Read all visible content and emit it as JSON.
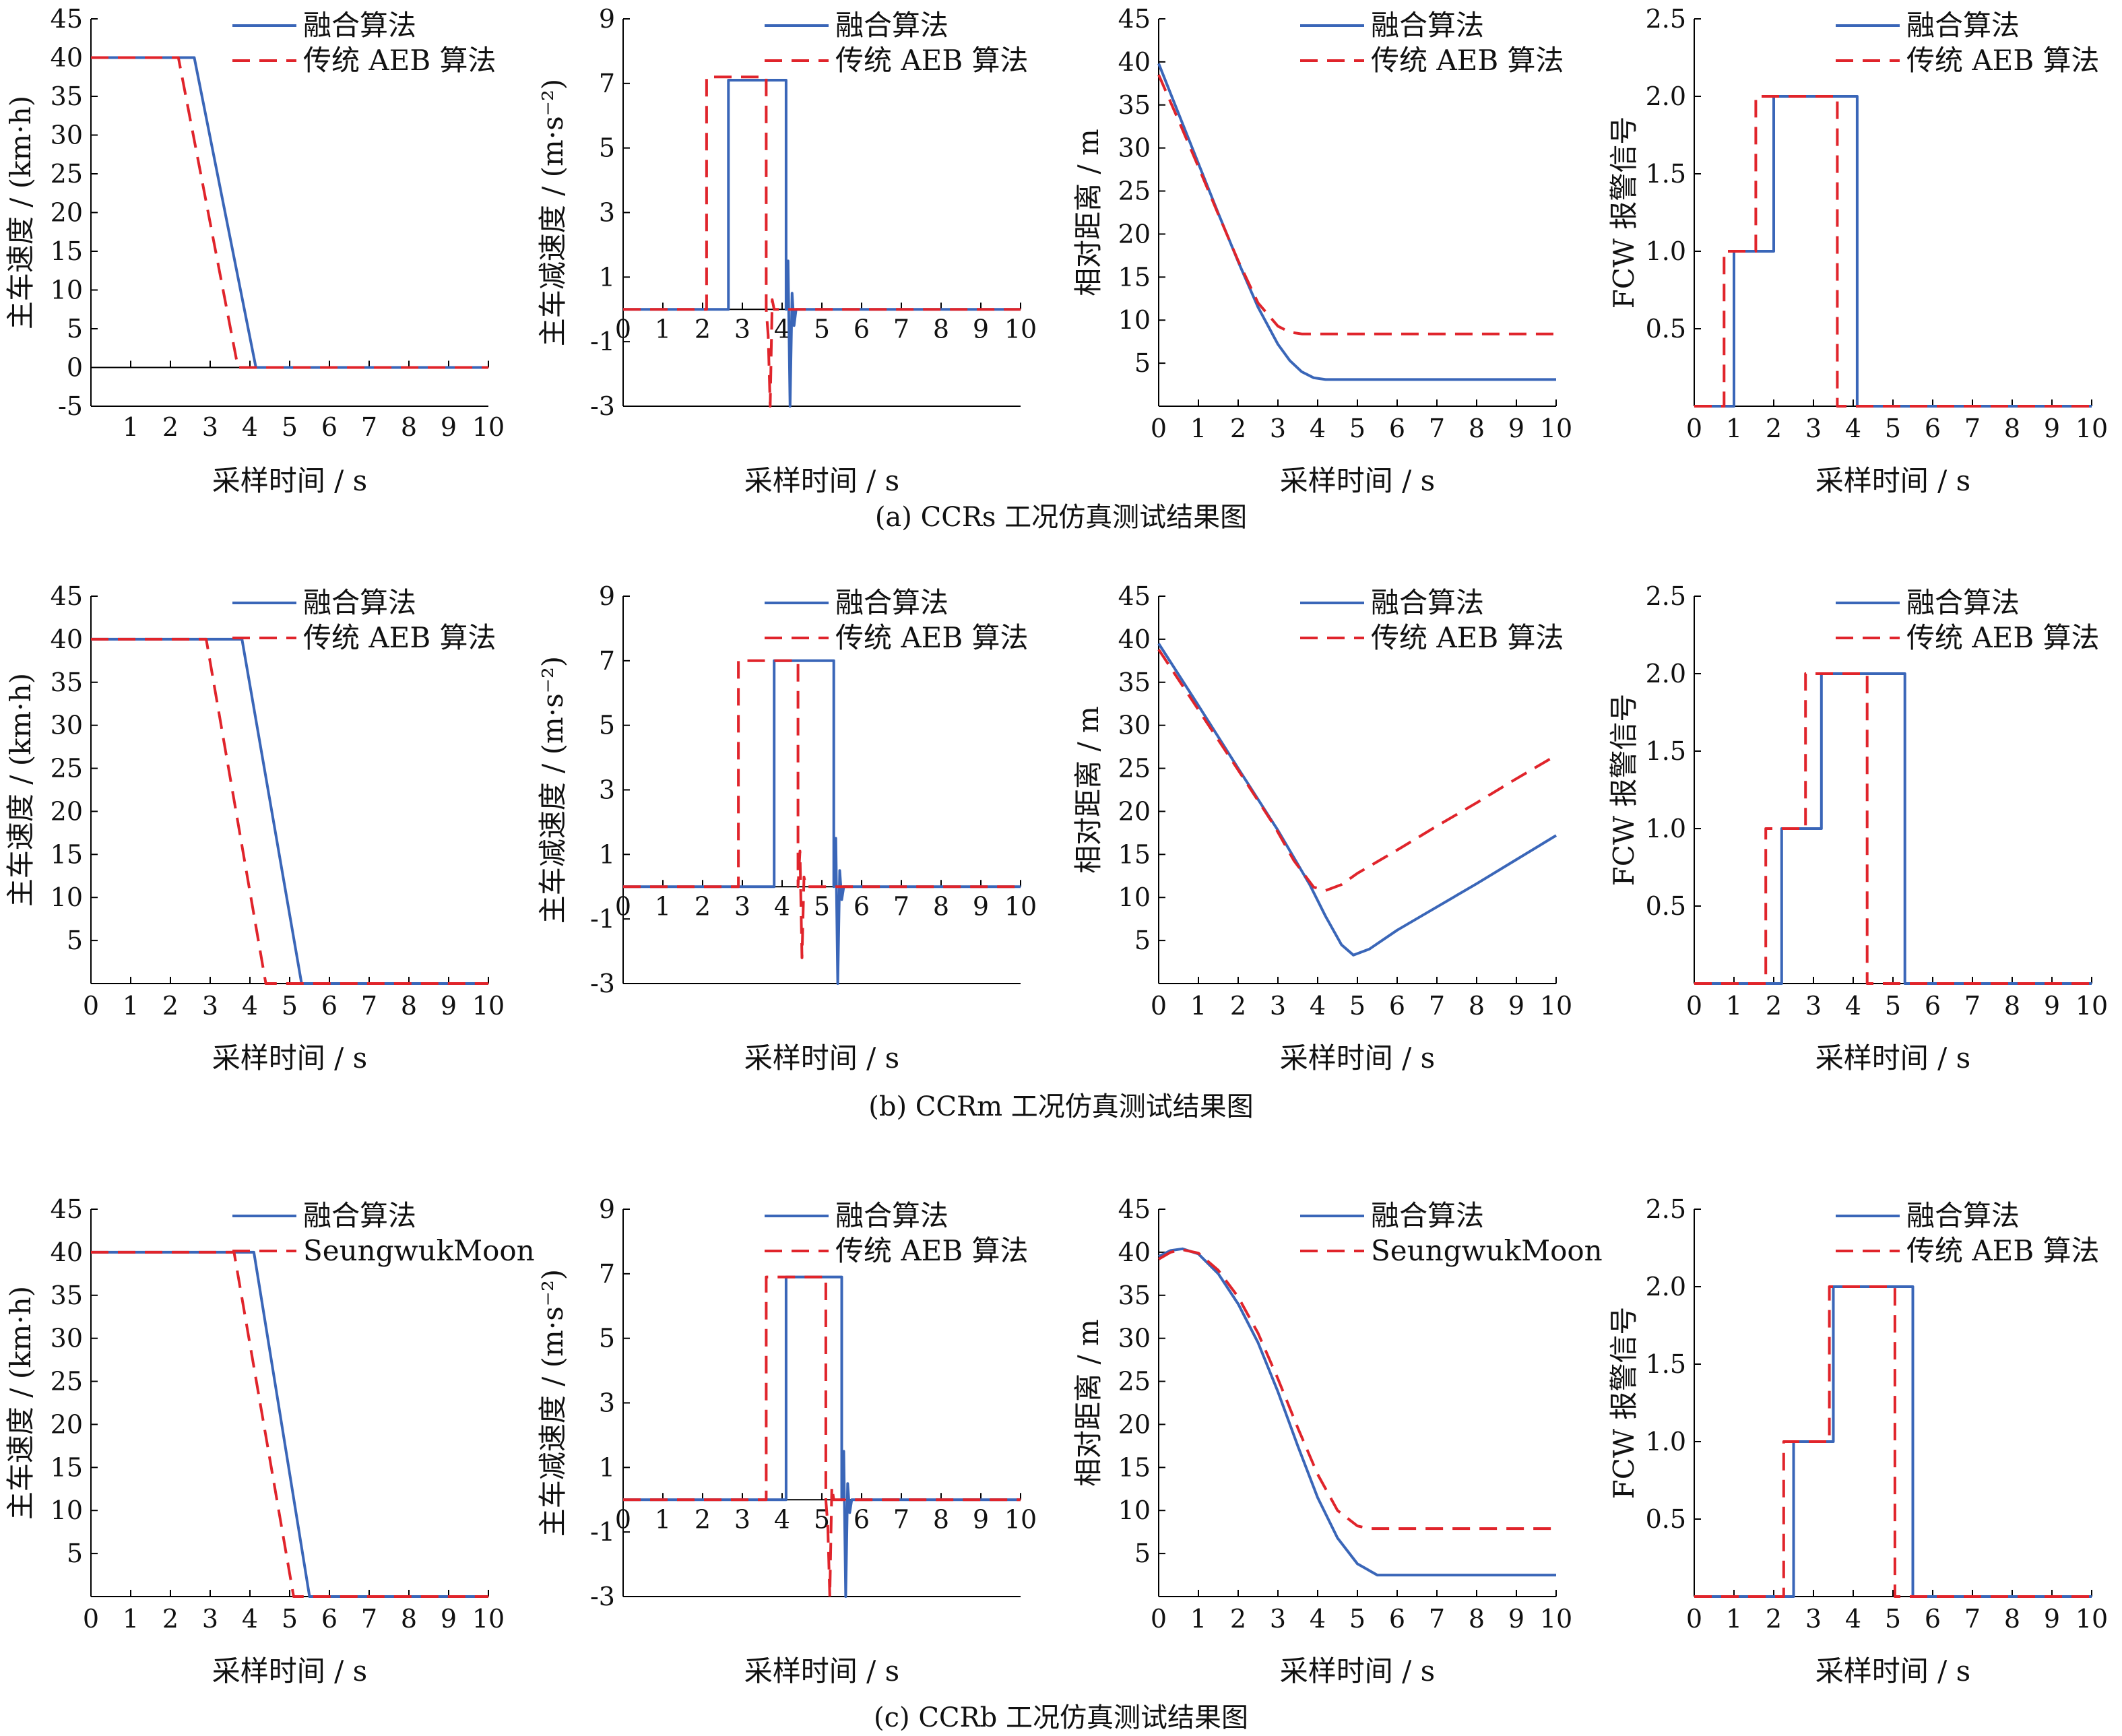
{
  "captions": [
    "(a) CCRs 工况仿真测试结果图",
    "(b) CCRm 工况仿真测试结果图",
    "(c) CCRb 工况仿真测试结果图"
  ],
  "colors": {
    "fusion": "#3a66b8",
    "aeb": "#e0242b",
    "axis": "#000000"
  },
  "chart_data": [
    {
      "id": "a-speed",
      "type": "line",
      "row": 0,
      "col": 0,
      "xlabel": "采样时间 / s",
      "ylabel": "主车速度 / (km·h)",
      "xlim": [
        0,
        10
      ],
      "ylim": [
        -5,
        45
      ],
      "xticks": [
        1,
        2,
        3,
        4,
        5,
        6,
        7,
        8,
        9,
        10
      ],
      "yticks": [
        -5,
        0,
        5,
        10,
        15,
        20,
        25,
        30,
        35,
        40,
        45
      ],
      "xzero_label": "",
      "zero_axis": true,
      "legend": [
        "融合算法",
        "传统 AEB 算法"
      ],
      "series": [
        {
          "name": "融合算法",
          "style": "solid",
          "x": [
            0,
            2.6,
            4.15,
            10
          ],
          "y": [
            40,
            40,
            0,
            0
          ]
        },
        {
          "name": "传统 AEB 算法",
          "style": "dashed",
          "x": [
            0,
            2.2,
            3.7,
            10
          ],
          "y": [
            40,
            40,
            0,
            0
          ]
        }
      ]
    },
    {
      "id": "a-decel",
      "type": "line",
      "row": 0,
      "col": 1,
      "xlabel": "采样时间 / s",
      "ylabel": "主车减速度 / (m·s⁻²)",
      "xlim": [
        0,
        10
      ],
      "ylim": [
        -3,
        9
      ],
      "xticks": [
        1,
        2,
        3,
        4,
        5,
        6,
        7,
        8,
        9,
        10
      ],
      "yticks": [
        -3,
        -1,
        1,
        3,
        5,
        7,
        9
      ],
      "xzero_label": "0",
      "zero_axis": true,
      "legend": [
        "融合算法",
        "传统 AEB 算法"
      ],
      "series": [
        {
          "name": "融合算法",
          "style": "solid",
          "x": [
            0,
            2.65,
            2.65,
            4.1,
            4.1,
            4.15,
            4.2,
            4.25,
            4.3,
            4.35,
            10
          ],
          "y": [
            0,
            0,
            7.1,
            7.1,
            0,
            1.5,
            -3,
            0.5,
            -0.5,
            0,
            0
          ]
        },
        {
          "name": "传统 AEB 算法",
          "style": "dashed",
          "x": [
            0,
            2.1,
            2.1,
            3.6,
            3.6,
            3.65,
            3.7,
            3.75,
            3.8,
            10
          ],
          "y": [
            0,
            0,
            7.2,
            7.2,
            0,
            -0.8,
            -3,
            0.3,
            0,
            0
          ]
        }
      ]
    },
    {
      "id": "a-dist",
      "type": "line",
      "row": 0,
      "col": 2,
      "xlabel": "采样时间 / s",
      "ylabel": "相对距离 / m",
      "xlim": [
        0,
        10
      ],
      "ylim": [
        0,
        45
      ],
      "xticks": [
        0,
        1,
        2,
        3,
        4,
        5,
        6,
        7,
        8,
        9,
        10
      ],
      "yticks": [
        5,
        10,
        15,
        20,
        25,
        30,
        35,
        40,
        45
      ],
      "xzero_label": "",
      "zero_axis": false,
      "legend": [
        "融合算法",
        "传统 AEB 算法"
      ],
      "series": [
        {
          "name": "融合算法",
          "style": "solid",
          "x": [
            0,
            0.5,
            1,
            1.5,
            2,
            2.5,
            3,
            3.3,
            3.6,
            3.9,
            4.2,
            5,
            10
          ],
          "y": [
            39.8,
            34,
            28.2,
            22.4,
            16.8,
            11.5,
            7.2,
            5.3,
            4.0,
            3.3,
            3.1,
            3.1,
            3.1
          ]
        },
        {
          "name": "传统 AEB 算法",
          "style": "dashed",
          "x": [
            0,
            0.5,
            1,
            1.5,
            2,
            2.5,
            3,
            3.3,
            3.6,
            4,
            10
          ],
          "y": [
            38.5,
            33.2,
            27.8,
            22.3,
            16.9,
            12.0,
            9.3,
            8.6,
            8.4,
            8.4,
            8.4
          ]
        }
      ]
    },
    {
      "id": "a-fcw",
      "type": "line",
      "row": 0,
      "col": 3,
      "xlabel": "采样时间 / s",
      "ylabel": "FCW 报警信号",
      "xlim": [
        0,
        10
      ],
      "ylim": [
        0,
        2.5
      ],
      "xticks": [
        0,
        1,
        2,
        3,
        4,
        5,
        6,
        7,
        8,
        9,
        10
      ],
      "yticks": [
        0.5,
        1.0,
        1.5,
        2.0,
        2.5
      ],
      "xzero_label": "",
      "zero_axis": false,
      "legend": [
        "融合算法",
        "传统 AEB 算法"
      ],
      "series": [
        {
          "name": "融合算法",
          "style": "solid",
          "x": [
            0,
            1,
            1,
            2,
            2,
            4.1,
            4.1,
            10
          ],
          "y": [
            0,
            0,
            1,
            1,
            2,
            2,
            0,
            0
          ]
        },
        {
          "name": "传统 AEB 算法",
          "style": "dashed",
          "x": [
            0,
            0.75,
            0.75,
            1.55,
            1.55,
            3.6,
            3.6,
            10
          ],
          "y": [
            0,
            0,
            1,
            1,
            2,
            2,
            0,
            0
          ]
        }
      ]
    },
    {
      "id": "b-speed",
      "type": "line",
      "row": 1,
      "col": 0,
      "xlabel": "采样时间 / s",
      "ylabel": "主车速度 / (km·h)",
      "xlim": [
        0,
        10
      ],
      "ylim": [
        0,
        45
      ],
      "xticks": [
        0,
        1,
        2,
        3,
        4,
        5,
        6,
        7,
        8,
        9,
        10
      ],
      "yticks": [
        5,
        10,
        15,
        20,
        25,
        30,
        35,
        40,
        45
      ],
      "xzero_label": "",
      "zero_axis": false,
      "legend": [
        "融合算法",
        "传统 AEB 算法"
      ],
      "series": [
        {
          "name": "融合算法",
          "style": "solid",
          "x": [
            0,
            3.8,
            5.3,
            10
          ],
          "y": [
            40,
            40,
            0,
            0
          ]
        },
        {
          "name": "传统 AEB 算法",
          "style": "dashed",
          "x": [
            0,
            2.9,
            4.4,
            10
          ],
          "y": [
            40,
            40,
            0,
            0
          ]
        }
      ]
    },
    {
      "id": "b-decel",
      "type": "line",
      "row": 1,
      "col": 1,
      "xlabel": "采样时间 / s",
      "ylabel": "主车减速度 / (m·s⁻²)",
      "xlim": [
        0,
        10
      ],
      "ylim": [
        -3,
        9
      ],
      "xticks": [
        1,
        2,
        3,
        4,
        5,
        6,
        7,
        8,
        9,
        10
      ],
      "yticks": [
        -3,
        -1,
        1,
        3,
        5,
        7,
        9
      ],
      "xzero_label": "0",
      "zero_axis": true,
      "legend": [
        "融合算法",
        "传统 AEB 算法"
      ],
      "series": [
        {
          "name": "融合算法",
          "style": "solid",
          "x": [
            0,
            3.8,
            3.8,
            5.3,
            5.3,
            5.35,
            5.4,
            5.45,
            5.5,
            5.55,
            10
          ],
          "y": [
            0,
            0,
            7,
            7,
            0,
            1.5,
            -3,
            0.5,
            -0.4,
            0,
            0
          ]
        },
        {
          "name": "传统 AEB 算法",
          "style": "dashed",
          "x": [
            0,
            2.9,
            2.9,
            4.4,
            4.4,
            4.45,
            4.5,
            4.55,
            4.6,
            10
          ],
          "y": [
            0,
            0,
            7,
            7,
            0,
            1.1,
            -2.2,
            0.3,
            0,
            0
          ]
        }
      ]
    },
    {
      "id": "b-dist",
      "type": "line",
      "row": 1,
      "col": 2,
      "xlabel": "采样时间 / s",
      "ylabel": "相对距离 / m",
      "xlim": [
        0,
        10
      ],
      "ylim": [
        0,
        45
      ],
      "xticks": [
        0,
        1,
        2,
        3,
        4,
        5,
        6,
        7,
        8,
        9,
        10
      ],
      "yticks": [
        5,
        10,
        15,
        20,
        25,
        30,
        35,
        40,
        45
      ],
      "xzero_label": "",
      "zero_axis": false,
      "legend": [
        "融合算法",
        "传统 AEB 算法"
      ],
      "series": [
        {
          "name": "融合算法",
          "style": "solid",
          "x": [
            0,
            1,
            2,
            3,
            3.8,
            4.2,
            4.6,
            4.9,
            5.3,
            6,
            7,
            8,
            9,
            10
          ],
          "y": [
            39.5,
            32.3,
            25,
            17.8,
            11.5,
            7.8,
            4.5,
            3.3,
            4.0,
            6.2,
            8.9,
            11.6,
            14.4,
            17.2
          ]
        },
        {
          "name": "传统 AEB 算法",
          "style": "dashed",
          "x": [
            0,
            1,
            2,
            2.9,
            3.4,
            3.9,
            4.2,
            4.6,
            5,
            6,
            7,
            8,
            9,
            10
          ],
          "y": [
            38.8,
            31.8,
            24.8,
            18.4,
            14.3,
            11.2,
            10.8,
            11.5,
            12.8,
            15.5,
            18.3,
            21.0,
            23.8,
            26.5
          ]
        }
      ]
    },
    {
      "id": "b-fcw",
      "type": "line",
      "row": 1,
      "col": 3,
      "xlabel": "采样时间 / s",
      "ylabel": "FCW 报警信号",
      "xlim": [
        0,
        10
      ],
      "ylim": [
        0,
        2.5
      ],
      "xticks": [
        0,
        1,
        2,
        3,
        4,
        5,
        6,
        7,
        8,
        9,
        10
      ],
      "yticks": [
        0.5,
        1.0,
        1.5,
        2.0,
        2.5
      ],
      "xzero_label": "",
      "zero_axis": false,
      "legend": [
        "融合算法",
        "传统 AEB 算法"
      ],
      "series": [
        {
          "name": "融合算法",
          "style": "solid",
          "x": [
            0,
            2.2,
            2.2,
            3.2,
            3.2,
            5.3,
            5.3,
            10
          ],
          "y": [
            0,
            0,
            1,
            1,
            2,
            2,
            0,
            0
          ]
        },
        {
          "name": "传统 AEB 算法",
          "style": "dashed",
          "x": [
            0,
            1.8,
            1.8,
            2.8,
            2.8,
            4.35,
            4.35,
            10
          ],
          "y": [
            0,
            0,
            1,
            1,
            2,
            2,
            0,
            0
          ]
        }
      ]
    },
    {
      "id": "c-speed",
      "type": "line",
      "row": 2,
      "col": 0,
      "xlabel": "采样时间 / s",
      "ylabel": "主车速度 / (km·h)",
      "xlim": [
        0,
        10
      ],
      "ylim": [
        0,
        45
      ],
      "xticks": [
        0,
        1,
        2,
        3,
        4,
        5,
        6,
        7,
        8,
        9,
        10
      ],
      "yticks": [
        5,
        10,
        15,
        20,
        25,
        30,
        35,
        40,
        45
      ],
      "xzero_label": "",
      "zero_axis": false,
      "legend": [
        "融合算法",
        "SeungwukMoon"
      ],
      "series": [
        {
          "name": "融合算法",
          "style": "solid",
          "x": [
            0,
            4.1,
            5.5,
            10
          ],
          "y": [
            40,
            40,
            0,
            0
          ]
        },
        {
          "name": "SeungwukMoon",
          "style": "dashed",
          "x": [
            0,
            3.6,
            5.1,
            10
          ],
          "y": [
            40,
            40,
            0,
            0
          ]
        }
      ]
    },
    {
      "id": "c-decel",
      "type": "line",
      "row": 2,
      "col": 1,
      "xlabel": "采样时间 / s",
      "ylabel": "主车减速度 / (m·s⁻²)",
      "xlim": [
        0,
        10
      ],
      "ylim": [
        -3,
        9
      ],
      "xticks": [
        1,
        2,
        3,
        4,
        5,
        6,
        7,
        8,
        9,
        10
      ],
      "yticks": [
        -3,
        -1,
        1,
        3,
        5,
        7,
        9
      ],
      "xzero_label": "0",
      "zero_axis": true,
      "legend": [
        "融合算法",
        "传统 AEB 算法"
      ],
      "series": [
        {
          "name": "融合算法",
          "style": "solid",
          "x": [
            0,
            4.1,
            4.1,
            5.5,
            5.5,
            5.55,
            5.6,
            5.65,
            5.7,
            5.75,
            10
          ],
          "y": [
            0,
            0,
            6.9,
            6.9,
            0,
            1.5,
            -3,
            0.5,
            -0.4,
            0,
            0
          ]
        },
        {
          "name": "传统 AEB 算法",
          "style": "dashed",
          "x": [
            0,
            3.6,
            3.6,
            5.1,
            5.1,
            5.15,
            5.2,
            5.25,
            5.3,
            10
          ],
          "y": [
            0,
            0,
            6.9,
            6.9,
            0,
            -0.8,
            -3,
            0.4,
            0,
            0
          ]
        }
      ]
    },
    {
      "id": "c-dist",
      "type": "line",
      "row": 2,
      "col": 2,
      "xlabel": "采样时间 / s",
      "ylabel": "相对距离 / m",
      "xlim": [
        0,
        10
      ],
      "ylim": [
        0,
        45
      ],
      "xticks": [
        0,
        1,
        2,
        3,
        4,
        5,
        6,
        7,
        8,
        9,
        10
      ],
      "yticks": [
        5,
        10,
        15,
        20,
        25,
        30,
        35,
        40,
        45
      ],
      "xzero_label": "",
      "zero_axis": false,
      "legend": [
        "融合算法",
        "SeungwukMoon"
      ],
      "series": [
        {
          "name": "融合算法",
          "style": "solid",
          "x": [
            0,
            0.3,
            0.6,
            1,
            1.5,
            2,
            2.5,
            3,
            3.5,
            4,
            4.5,
            5,
            5.5,
            6,
            10
          ],
          "y": [
            39.5,
            40.2,
            40.4,
            39.8,
            37.5,
            34.0,
            29.5,
            23.8,
            17.5,
            11.5,
            6.8,
            3.8,
            2.5,
            2.5,
            2.5
          ]
        },
        {
          "name": "SeungwukMoon",
          "style": "dashed",
          "x": [
            0,
            0.3,
            0.6,
            1,
            1.5,
            2,
            2.5,
            3,
            3.5,
            4,
            4.5,
            5,
            5.3,
            10
          ],
          "y": [
            39.2,
            40.0,
            40.3,
            39.9,
            37.9,
            34.8,
            30.6,
            25.3,
            19.6,
            14.2,
            10.0,
            8.2,
            7.9,
            7.9
          ]
        }
      ]
    },
    {
      "id": "c-fcw",
      "type": "line",
      "row": 2,
      "col": 3,
      "xlabel": "采样时间 / s",
      "ylabel": "FCW 报警信号",
      "xlim": [
        0,
        10
      ],
      "ylim": [
        0,
        2.5
      ],
      "xticks": [
        0,
        1,
        2,
        3,
        4,
        5,
        6,
        7,
        8,
        9,
        10
      ],
      "yticks": [
        0.5,
        1.0,
        1.5,
        2.0,
        2.5
      ],
      "xzero_label": "",
      "zero_axis": false,
      "legend": [
        "融合算法",
        "传统 AEB 算法"
      ],
      "series": [
        {
          "name": "融合算法",
          "style": "solid",
          "x": [
            0,
            2.5,
            2.5,
            3.5,
            3.5,
            5.5,
            5.5,
            10
          ],
          "y": [
            0,
            0,
            1,
            1,
            2,
            2,
            0,
            0
          ]
        },
        {
          "name": "传统 AEB 算法",
          "style": "dashed",
          "x": [
            0,
            2.25,
            2.25,
            3.4,
            3.4,
            5.05,
            5.05,
            10
          ],
          "y": [
            0,
            0,
            1,
            1,
            2,
            2,
            0,
            0
          ]
        }
      ]
    }
  ]
}
